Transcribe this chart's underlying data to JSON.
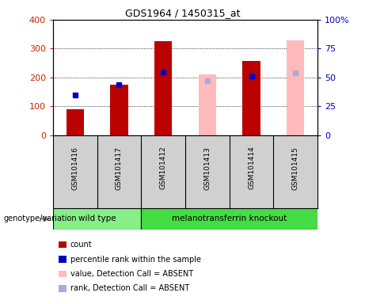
{
  "title": "GDS1964 / 1450315_at",
  "samples": [
    "GSM101416",
    "GSM101417",
    "GSM101412",
    "GSM101413",
    "GSM101414",
    "GSM101415"
  ],
  "count_values": [
    90,
    175,
    325,
    null,
    258,
    null
  ],
  "count_absent": [
    null,
    null,
    null,
    210,
    null,
    328
  ],
  "percentile_values": [
    35,
    44,
    55,
    null,
    51,
    null
  ],
  "percentile_absent": [
    null,
    null,
    null,
    47,
    null,
    54
  ],
  "ylim_left": [
    0,
    400
  ],
  "ylim_right": [
    0,
    100
  ],
  "yticks_left": [
    0,
    100,
    200,
    300,
    400
  ],
  "yticks_right": [
    0,
    25,
    50,
    75,
    100
  ],
  "yticklabels_right": [
    "0",
    "25",
    "50",
    "75",
    "100%"
  ],
  "color_count_present": "#bb0000",
  "color_count_absent": "#ffbbbb",
  "color_percentile_present": "#0000bb",
  "color_percentile_absent": "#aaaadd",
  "bar_width": 0.4,
  "bg_color": "#d0d0d0",
  "plot_bg": "#ffffff",
  "left_label_color": "#cc2200",
  "right_label_color": "#0000cc",
  "genotype_label": "genotype/variation",
  "group_wild_color": "#88ee88",
  "group_ko_color": "#44dd44",
  "legend_items": [
    {
      "label": "count",
      "color": "#bb0000"
    },
    {
      "label": "percentile rank within the sample",
      "color": "#0000bb"
    },
    {
      "label": "value, Detection Call = ABSENT",
      "color": "#ffbbbb"
    },
    {
      "label": "rank, Detection Call = ABSENT",
      "color": "#aaaadd"
    }
  ]
}
